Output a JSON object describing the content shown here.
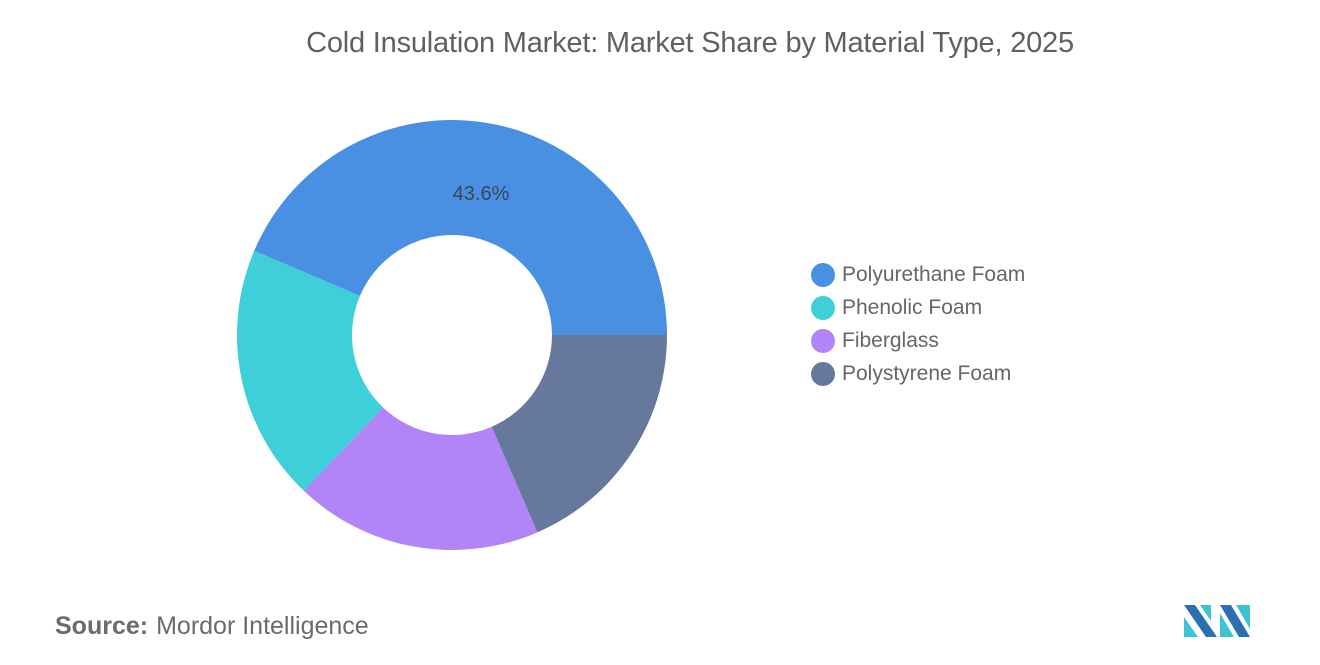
{
  "chart_data": {
    "type": "pie",
    "subtype": "donut",
    "title": "Cold Insulation Market: Market Share by Material Type, 2025",
    "categories": [
      "Polyurethane Foam",
      "Phenolic Foam",
      "Fiberglass",
      "Polystyrene Foam"
    ],
    "values": [
      43.6,
      19.3,
      18.6,
      18.5
    ],
    "units": "%",
    "colors": [
      "#4a90e2",
      "#3ecfd8",
      "#b185f7",
      "#66799c"
    ],
    "data_labels": [
      {
        "category": "Polyurethane Foam",
        "text": "43.6%",
        "visible": true
      },
      {
        "category": "Phenolic Foam",
        "text": "",
        "visible": false
      },
      {
        "category": "Fiberglass",
        "text": "",
        "visible": false
      },
      {
        "category": "Polystyrene Foam",
        "text": "",
        "visible": false
      }
    ],
    "legend_position": "right",
    "inner_radius_ratio": 0.47
  },
  "header": {
    "title": "Cold Insulation Market: Market Share by Material Type, 2025"
  },
  "donut": {
    "label_polyurethane": "43.6%"
  },
  "legend": {
    "items": [
      {
        "label": "Polyurethane Foam",
        "color": "#4a90e2"
      },
      {
        "label": "Phenolic Foam",
        "color": "#3ecfd8"
      },
      {
        "label": "Fiberglass",
        "color": "#b185f7"
      },
      {
        "label": "Polystyrene Foam",
        "color": "#66799c"
      }
    ]
  },
  "footer": {
    "source_key": "Source:",
    "source_value": "Mordor Intelligence",
    "logo_icon": "mordor-intelligence-logo-icon"
  }
}
